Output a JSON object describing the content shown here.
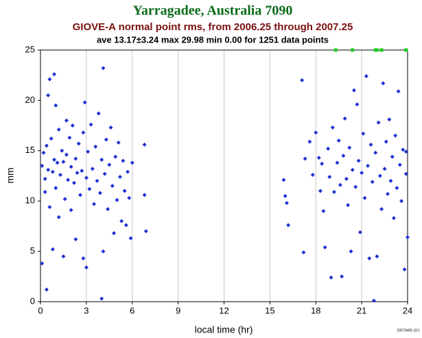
{
  "chart_data": {
    "type": "scatter",
    "title": "Yarragadee, Australia 7090",
    "subtitle": "GIOVE-A normal point rms, from 2006.25 through 2007.25",
    "stats": "ave 13.17±3.24 max 29.98 min 0.00 for 1251 data points",
    "xlabel": "local time (hr)",
    "ylabel": "mm",
    "footnote": "20070405 18:1",
    "xlim": [
      0,
      24
    ],
    "ylim": [
      0,
      25
    ],
    "xticks": [
      0,
      3,
      6,
      9,
      12,
      15,
      18,
      21,
      24
    ],
    "yticks": [
      0,
      5,
      10,
      15,
      20,
      25
    ],
    "grid": true,
    "series": [
      {
        "color": "#1e32d2",
        "marker": "diamond",
        "x": [
          0.1,
          0.1,
          0.2,
          0.3,
          0.3,
          0.4,
          0.4,
          0.5,
          0.5,
          0.6,
          0.6,
          0.7,
          0.8,
          0.8,
          0.9,
          0.9,
          1.0,
          1.0,
          1.1,
          1.2,
          1.2,
          1.3,
          1.4,
          1.5,
          1.5,
          1.6,
          1.7,
          1.7,
          1.8,
          1.9,
          2.0,
          2.0,
          2.1,
          2.2,
          2.3,
          2.3,
          2.4,
          2.5,
          2.6,
          2.7,
          2.8,
          2.8,
          2.9,
          3.0,
          3.0,
          3.1,
          3.2,
          3.3,
          3.4,
          3.5,
          3.6,
          3.7,
          3.8,
          3.9,
          4.0,
          4.0,
          4.1,
          4.1,
          4.2,
          4.3,
          4.4,
          4.5,
          4.6,
          4.7,
          4.8,
          4.9,
          5.0,
          5.1,
          5.2,
          5.3,
          5.4,
          5.5,
          5.6,
          5.7,
          5.8,
          5.9,
          6.0,
          6.8,
          6.8,
          6.9,
          15.9,
          16.0,
          16.1,
          16.2,
          17.1,
          17.2,
          17.3,
          17.6,
          17.8,
          18.0,
          18.2,
          18.3,
          18.4,
          18.5,
          18.6,
          18.8,
          18.9,
          19.0,
          19.1,
          19.2,
          19.4,
          19.5,
          19.6,
          19.7,
          19.8,
          19.9,
          20.0,
          20.1,
          20.2,
          20.3,
          20.4,
          20.5,
          20.6,
          20.7,
          20.8,
          20.9,
          21.0,
          21.1,
          21.2,
          21.3,
          21.4,
          21.5,
          21.6,
          21.7,
          21.8,
          21.9,
          22.0,
          22.1,
          22.2,
          22.3,
          22.4,
          22.5,
          22.6,
          22.7,
          22.8,
          22.9,
          23.0,
          23.1,
          23.2,
          23.3,
          23.4,
          23.5,
          23.6,
          23.7,
          23.8,
          23.9,
          24.0,
          23.9
        ],
        "values": [
          13.5,
          3.8,
          14.8,
          12.2,
          10.9,
          1.2,
          15.5,
          20.5,
          13.1,
          22.1,
          9.4,
          16.2,
          12.9,
          5.2,
          22.6,
          14.1,
          19.5,
          11.3,
          13.8,
          17.1,
          8.4,
          12.6,
          15.0,
          4.5,
          13.9,
          10.2,
          18.0,
          14.6,
          12.1,
          16.3,
          13.4,
          9.1,
          17.5,
          11.8,
          14.2,
          6.2,
          12.8,
          15.7,
          10.6,
          13.0,
          4.3,
          16.8,
          19.8,
          12.3,
          3.4,
          14.9,
          11.2,
          17.6,
          13.2,
          9.7,
          15.4,
          12.0,
          18.7,
          10.8,
          0.3,
          14.1,
          23.2,
          5.0,
          12.7,
          16.1,
          9.2,
          13.6,
          17.3,
          11.5,
          6.8,
          14.4,
          10.1,
          15.8,
          12.4,
          8.0,
          14.0,
          11.0,
          7.6,
          12.9,
          10.3,
          6.3,
          13.8,
          15.6,
          10.6,
          7.0,
          12.1,
          10.5,
          9.8,
          7.6,
          22.0,
          4.9,
          14.2,
          15.9,
          12.6,
          16.8,
          14.3,
          11.0,
          13.7,
          9.0,
          5.4,
          15.2,
          12.4,
          2.4,
          17.3,
          10.9,
          13.8,
          16.0,
          11.6,
          2.5,
          14.5,
          18.2,
          12.2,
          9.6,
          15.3,
          5.0,
          13.1,
          21.0,
          11.4,
          19.6,
          14.0,
          6.9,
          12.8,
          16.7,
          10.3,
          22.4,
          13.5,
          4.3,
          15.6,
          11.9,
          0.1,
          14.8,
          4.5,
          17.8,
          12.5,
          9.2,
          21.7,
          13.2,
          15.9,
          10.7,
          18.1,
          12.0,
          14.4,
          8.3,
          16.5,
          11.3,
          20.9,
          13.6,
          10.0,
          15.1,
          3.2,
          12.7,
          6.4,
          14.9
        ]
      },
      {
        "color": "#22cc22",
        "marker": "square",
        "x": [
          19.3,
          20.4,
          21.9,
          22.0,
          22.3,
          23.9
        ],
        "values": [
          25,
          25,
          25,
          25,
          25,
          25
        ]
      }
    ]
  }
}
